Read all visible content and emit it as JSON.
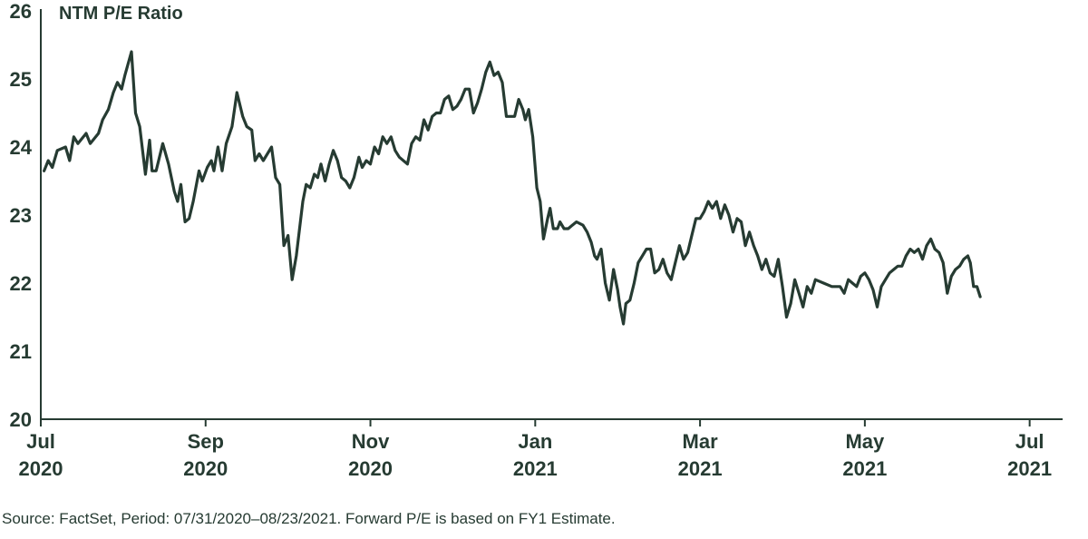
{
  "footer": {
    "source": "Source: FactSet, Period: 07/31/2020–08/23/2021. Forward P/E is based on FY1 Estimate."
  },
  "colors": {
    "line": "#263b32",
    "axis": "#263b32",
    "text": "#263b32"
  },
  "chart_data": {
    "type": "line",
    "title": "",
    "ylabel": "NTM P/E Ratio",
    "xlabel": "",
    "ylim": [
      20,
      26
    ],
    "yticks": [
      20,
      21,
      22,
      23,
      24,
      25,
      26
    ],
    "xlim": [
      0,
      12.4
    ],
    "xticks": [
      {
        "pos": 0,
        "label": [
          "Jul",
          "2020"
        ]
      },
      {
        "pos": 2,
        "label": [
          "Sep",
          "2020"
        ]
      },
      {
        "pos": 4,
        "label": [
          "Nov",
          "2020"
        ]
      },
      {
        "pos": 6,
        "label": [
          "Jan",
          "2021"
        ]
      },
      {
        "pos": 8,
        "label": [
          "Mar",
          "2021"
        ]
      },
      {
        "pos": 10,
        "label": [
          "May",
          "2021"
        ]
      },
      {
        "pos": 12,
        "label": [
          "Jul",
          "2021"
        ]
      }
    ],
    "grid": false,
    "legend": "none",
    "series": [
      {
        "name": "",
        "points": [
          [
            0.04,
            23.65
          ],
          [
            0.09,
            23.8
          ],
          [
            0.14,
            23.7
          ],
          [
            0.2,
            23.95
          ],
          [
            0.3,
            24.0
          ],
          [
            0.35,
            23.8
          ],
          [
            0.4,
            24.15
          ],
          [
            0.45,
            24.05
          ],
          [
            0.55,
            24.2
          ],
          [
            0.6,
            24.05
          ],
          [
            0.7,
            24.2
          ],
          [
            0.75,
            24.4
          ],
          [
            0.82,
            24.55
          ],
          [
            0.88,
            24.8
          ],
          [
            0.93,
            24.95
          ],
          [
            0.98,
            24.85
          ],
          [
            1.02,
            25.05
          ],
          [
            1.1,
            25.4
          ],
          [
            1.15,
            24.5
          ],
          [
            1.2,
            24.3
          ],
          [
            1.27,
            23.6
          ],
          [
            1.32,
            24.1
          ],
          [
            1.35,
            23.65
          ],
          [
            1.4,
            23.65
          ],
          [
            1.48,
            24.05
          ],
          [
            1.55,
            23.75
          ],
          [
            1.62,
            23.35
          ],
          [
            1.66,
            23.2
          ],
          [
            1.7,
            23.45
          ],
          [
            1.75,
            22.9
          ],
          [
            1.8,
            22.95
          ],
          [
            1.85,
            23.2
          ],
          [
            1.92,
            23.65
          ],
          [
            1.96,
            23.5
          ],
          [
            2.02,
            23.7
          ],
          [
            2.07,
            23.8
          ],
          [
            2.1,
            23.65
          ],
          [
            2.15,
            24.0
          ],
          [
            2.2,
            23.65
          ],
          [
            2.25,
            24.05
          ],
          [
            2.32,
            24.3
          ],
          [
            2.38,
            24.8
          ],
          [
            2.45,
            24.45
          ],
          [
            2.5,
            24.3
          ],
          [
            2.56,
            24.25
          ],
          [
            2.6,
            23.8
          ],
          [
            2.65,
            23.9
          ],
          [
            2.7,
            23.8
          ],
          [
            2.8,
            24.0
          ],
          [
            2.85,
            23.55
          ],
          [
            2.9,
            23.45
          ],
          [
            2.95,
            22.55
          ],
          [
            3.0,
            22.7
          ],
          [
            3.05,
            22.05
          ],
          [
            3.1,
            22.4
          ],
          [
            3.18,
            23.2
          ],
          [
            3.22,
            23.45
          ],
          [
            3.27,
            23.4
          ],
          [
            3.32,
            23.6
          ],
          [
            3.36,
            23.55
          ],
          [
            3.4,
            23.75
          ],
          [
            3.45,
            23.5
          ],
          [
            3.5,
            23.75
          ],
          [
            3.55,
            23.95
          ],
          [
            3.6,
            23.8
          ],
          [
            3.65,
            23.55
          ],
          [
            3.7,
            23.5
          ],
          [
            3.75,
            23.4
          ],
          [
            3.8,
            23.55
          ],
          [
            3.86,
            23.85
          ],
          [
            3.9,
            23.7
          ],
          [
            3.95,
            23.8
          ],
          [
            4.0,
            23.75
          ],
          [
            4.05,
            24.0
          ],
          [
            4.1,
            23.9
          ],
          [
            4.15,
            24.15
          ],
          [
            4.2,
            24.05
          ],
          [
            4.25,
            24.15
          ],
          [
            4.3,
            23.95
          ],
          [
            4.35,
            23.85
          ],
          [
            4.45,
            23.75
          ],
          [
            4.5,
            24.05
          ],
          [
            4.55,
            24.15
          ],
          [
            4.6,
            24.1
          ],
          [
            4.65,
            24.4
          ],
          [
            4.7,
            24.25
          ],
          [
            4.75,
            24.45
          ],
          [
            4.8,
            24.5
          ],
          [
            4.85,
            24.5
          ],
          [
            4.9,
            24.7
          ],
          [
            4.95,
            24.75
          ],
          [
            5.0,
            24.55
          ],
          [
            5.05,
            24.6
          ],
          [
            5.1,
            24.7
          ],
          [
            5.15,
            24.85
          ],
          [
            5.2,
            24.85
          ],
          [
            5.25,
            24.5
          ],
          [
            5.3,
            24.65
          ],
          [
            5.35,
            24.85
          ],
          [
            5.4,
            25.1
          ],
          [
            5.45,
            25.25
          ],
          [
            5.5,
            25.05
          ],
          [
            5.55,
            25.1
          ],
          [
            5.6,
            24.95
          ],
          [
            5.65,
            24.45
          ],
          [
            5.7,
            24.45
          ],
          [
            5.75,
            24.45
          ],
          [
            5.8,
            24.7
          ],
          [
            5.85,
            24.55
          ],
          [
            5.88,
            24.4
          ],
          [
            5.92,
            24.55
          ],
          [
            5.97,
            24.15
          ],
          [
            6.02,
            23.4
          ],
          [
            6.06,
            23.2
          ],
          [
            6.1,
            22.65
          ],
          [
            6.15,
            22.95
          ],
          [
            6.18,
            23.1
          ],
          [
            6.22,
            22.8
          ],
          [
            6.27,
            22.8
          ],
          [
            6.3,
            22.9
          ],
          [
            6.35,
            22.8
          ],
          [
            6.4,
            22.8
          ],
          [
            6.45,
            22.85
          ],
          [
            6.5,
            22.9
          ],
          [
            6.58,
            22.85
          ],
          [
            6.63,
            22.75
          ],
          [
            6.68,
            22.6
          ],
          [
            6.72,
            22.4
          ],
          [
            6.75,
            22.35
          ],
          [
            6.8,
            22.5
          ],
          [
            6.85,
            22.0
          ],
          [
            6.9,
            21.75
          ],
          [
            6.95,
            22.2
          ],
          [
            7.0,
            21.9
          ],
          [
            7.03,
            21.65
          ],
          [
            7.07,
            21.4
          ],
          [
            7.1,
            21.7
          ],
          [
            7.15,
            21.75
          ],
          [
            7.2,
            22.0
          ],
          [
            7.25,
            22.3
          ],
          [
            7.3,
            22.4
          ],
          [
            7.35,
            22.5
          ],
          [
            7.4,
            22.5
          ],
          [
            7.45,
            22.15
          ],
          [
            7.5,
            22.2
          ],
          [
            7.55,
            22.35
          ],
          [
            7.6,
            22.15
          ],
          [
            7.65,
            22.05
          ],
          [
            7.7,
            22.3
          ],
          [
            7.75,
            22.55
          ],
          [
            7.8,
            22.35
          ],
          [
            7.85,
            22.45
          ],
          [
            7.9,
            22.7
          ],
          [
            7.95,
            22.95
          ],
          [
            8.0,
            22.95
          ],
          [
            8.05,
            23.05
          ],
          [
            8.1,
            23.2
          ],
          [
            8.15,
            23.1
          ],
          [
            8.2,
            23.2
          ],
          [
            8.25,
            22.95
          ],
          [
            8.3,
            23.15
          ],
          [
            8.35,
            23.0
          ],
          [
            8.4,
            22.75
          ],
          [
            8.45,
            22.95
          ],
          [
            8.5,
            22.9
          ],
          [
            8.55,
            22.55
          ],
          [
            8.6,
            22.75
          ],
          [
            8.65,
            22.55
          ],
          [
            8.7,
            22.4
          ],
          [
            8.75,
            22.2
          ],
          [
            8.8,
            22.35
          ],
          [
            8.85,
            22.15
          ],
          [
            8.9,
            22.1
          ],
          [
            8.95,
            22.35
          ],
          [
            9.0,
            21.95
          ],
          [
            9.05,
            21.5
          ],
          [
            9.1,
            21.7
          ],
          [
            9.15,
            22.05
          ],
          [
            9.2,
            21.85
          ],
          [
            9.25,
            21.65
          ],
          [
            9.3,
            21.95
          ],
          [
            9.35,
            21.85
          ],
          [
            9.4,
            22.05
          ],
          [
            9.5,
            22.0
          ],
          [
            9.6,
            21.95
          ],
          [
            9.7,
            21.95
          ],
          [
            9.75,
            21.85
          ],
          [
            9.8,
            22.05
          ],
          [
            9.85,
            22.0
          ],
          [
            9.9,
            21.95
          ],
          [
            9.95,
            22.1
          ],
          [
            10.0,
            22.15
          ],
          [
            10.05,
            22.05
          ],
          [
            10.1,
            21.9
          ],
          [
            10.15,
            21.65
          ],
          [
            10.2,
            21.95
          ],
          [
            10.25,
            22.05
          ],
          [
            10.3,
            22.15
          ],
          [
            10.35,
            22.2
          ],
          [
            10.4,
            22.25
          ],
          [
            10.45,
            22.25
          ],
          [
            10.5,
            22.4
          ],
          [
            10.55,
            22.5
          ],
          [
            10.6,
            22.45
          ],
          [
            10.65,
            22.5
          ],
          [
            10.7,
            22.35
          ],
          [
            10.75,
            22.55
          ],
          [
            10.8,
            22.65
          ],
          [
            10.85,
            22.5
          ],
          [
            10.9,
            22.45
          ],
          [
            10.95,
            22.3
          ],
          [
            11.0,
            21.85
          ],
          [
            11.05,
            22.1
          ],
          [
            11.1,
            22.2
          ],
          [
            11.15,
            22.25
          ],
          [
            11.2,
            22.35
          ],
          [
            11.25,
            22.4
          ],
          [
            11.28,
            22.3
          ],
          [
            11.32,
            21.95
          ],
          [
            11.36,
            21.95
          ],
          [
            11.4,
            21.8
          ]
        ]
      }
    ]
  }
}
